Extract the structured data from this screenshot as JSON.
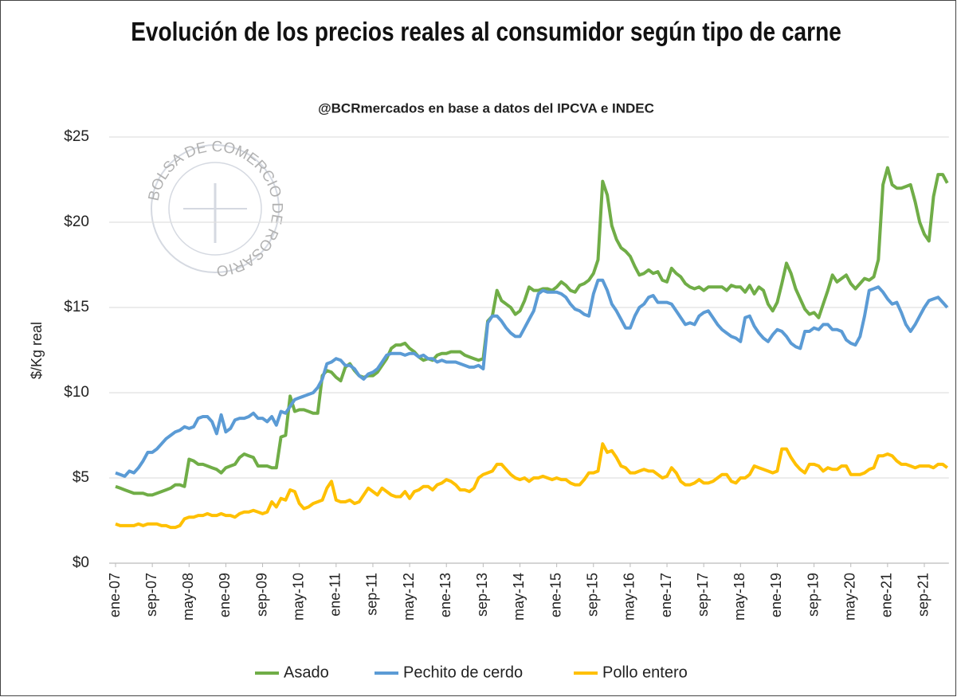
{
  "chart_data": {
    "type": "line",
    "title": "Evolución de los precios reales al consumidor según tipo de carne",
    "subtitle": "@BCRmercados en base a datos del IPCVA e INDEC",
    "watermark": "BOLSA DE COMERCIO DE ROSARIO",
    "y_label": "$/Kg real",
    "ylim": [
      0,
      25
    ],
    "yticks": [
      {
        "value": 0,
        "label": "$0"
      },
      {
        "value": 5,
        "label": "$5"
      },
      {
        "value": 10,
        "label": "$10"
      },
      {
        "value": 15,
        "label": "$15"
      },
      {
        "value": 20,
        "label": "$20"
      },
      {
        "value": 25,
        "label": "$25"
      }
    ],
    "grid": true,
    "legend": "bottom",
    "categories": [
      "ene-07",
      null,
      null,
      null,
      null,
      null,
      null,
      null,
      "sep-07",
      null,
      null,
      null,
      null,
      null,
      null,
      null,
      "may-08",
      null,
      null,
      null,
      null,
      null,
      null,
      null,
      "ene-09",
      null,
      null,
      null,
      null,
      null,
      null,
      null,
      "sep-09",
      null,
      null,
      null,
      null,
      null,
      null,
      null,
      "may-10",
      null,
      null,
      null,
      null,
      null,
      null,
      null,
      "ene-11",
      null,
      null,
      null,
      null,
      null,
      null,
      null,
      "sep-11",
      null,
      null,
      null,
      null,
      null,
      null,
      null,
      "may-12",
      null,
      null,
      null,
      null,
      null,
      null,
      null,
      "ene-13",
      null,
      null,
      null,
      null,
      null,
      null,
      null,
      "sep-13",
      null,
      null,
      null,
      null,
      null,
      null,
      null,
      "may-14",
      null,
      null,
      null,
      null,
      null,
      null,
      null,
      "ene-15",
      null,
      null,
      null,
      null,
      null,
      null,
      null,
      "sep-15",
      null,
      null,
      null,
      null,
      null,
      null,
      null,
      "may-16",
      null,
      null,
      null,
      null,
      null,
      null,
      null,
      "ene-17",
      null,
      null,
      null,
      null,
      null,
      null,
      null,
      "sep-17",
      null,
      null,
      null,
      null,
      null,
      null,
      null,
      "may-18",
      null,
      null,
      null,
      null,
      null,
      null,
      null,
      "ene-19",
      null,
      null,
      null,
      null,
      null,
      null,
      null,
      "sep-19",
      null,
      null,
      null,
      null,
      null,
      null,
      null,
      "may-20",
      null,
      null,
      null,
      null,
      null,
      null,
      null,
      "ene-21",
      null,
      null,
      null,
      null,
      null,
      null,
      null,
      "sep-21",
      null,
      null,
      null,
      null,
      null
    ],
    "series": [
      {
        "name": "Asado",
        "color": "#70ad47",
        "values": [
          4.5,
          4.4,
          4.3,
          4.2,
          4.1,
          4.1,
          4.1,
          4.0,
          4.0,
          4.1,
          4.2,
          4.3,
          4.4,
          4.6,
          4.6,
          4.5,
          6.1,
          6.0,
          5.8,
          5.8,
          5.7,
          5.6,
          5.5,
          5.3,
          5.6,
          5.7,
          5.8,
          6.2,
          6.4,
          6.3,
          6.2,
          5.7,
          5.7,
          5.7,
          5.6,
          5.6,
          7.4,
          7.5,
          9.8,
          8.9,
          9.0,
          9.0,
          8.9,
          8.8,
          8.8,
          11.0,
          11.3,
          11.2,
          10.9,
          10.7,
          11.5,
          11.7,
          11.3,
          11.0,
          10.9,
          11.0,
          11.0,
          11.2,
          11.6,
          12.0,
          12.6,
          12.8,
          12.8,
          12.9,
          12.6,
          12.4,
          12.1,
          11.9,
          12.0,
          11.9,
          12.2,
          12.3,
          12.3,
          12.4,
          12.4,
          12.4,
          12.2,
          12.1,
          12.0,
          11.9,
          12.0,
          14.2,
          14.5,
          16.0,
          15.4,
          15.2,
          15.0,
          14.6,
          14.8,
          15.4,
          16.2,
          16.0,
          16.0,
          16.1,
          16.1,
          16.0,
          16.2,
          16.5,
          16.3,
          16.0,
          15.9,
          16.3,
          16.4,
          16.6,
          17.0,
          17.8,
          22.4,
          21.6,
          19.8,
          19.0,
          18.5,
          18.3,
          18.0,
          17.4,
          16.9,
          17.0,
          17.2,
          17.0,
          17.1,
          16.6,
          16.5,
          17.3,
          17.0,
          16.8,
          16.4,
          16.2,
          16.1,
          16.2,
          16.0,
          16.2,
          16.2,
          16.2,
          16.2,
          16.0,
          16.3,
          16.2,
          16.2,
          15.9,
          16.3,
          15.8,
          16.2,
          16.0,
          15.2,
          14.8,
          15.3,
          16.4,
          17.6,
          17.0,
          16.1,
          15.5,
          14.9,
          14.6,
          14.7,
          14.4,
          15.2,
          16.0,
          16.9,
          16.5,
          16.7,
          16.9,
          16.4,
          16.1,
          16.4,
          16.7,
          16.6,
          16.8,
          17.8,
          22.2,
          23.2,
          22.2,
          22.0,
          22.0,
          22.1,
          22.2,
          21.2,
          20.0,
          19.3,
          18.9,
          21.5,
          22.8,
          22.8,
          22.3
        ]
      },
      {
        "name": "Pechito de cerdo",
        "color": "#5b9bd5",
        "values": [
          5.3,
          5.2,
          5.1,
          5.4,
          5.3,
          5.6,
          6.0,
          6.5,
          6.5,
          6.7,
          7.0,
          7.3,
          7.5,
          7.7,
          7.8,
          8.0,
          7.9,
          8.0,
          8.5,
          8.6,
          8.6,
          8.3,
          7.6,
          8.7,
          7.7,
          7.9,
          8.4,
          8.5,
          8.5,
          8.6,
          8.8,
          8.5,
          8.5,
          8.3,
          8.6,
          8.1,
          8.9,
          8.8,
          9.2,
          9.6,
          9.7,
          9.8,
          9.9,
          10.0,
          10.3,
          10.8,
          11.7,
          11.8,
          12.0,
          11.9,
          11.6,
          11.6,
          11.4,
          11.0,
          10.8,
          11.1,
          11.2,
          11.4,
          11.8,
          12.2,
          12.3,
          12.3,
          12.3,
          12.2,
          12.3,
          12.3,
          12.1,
          12.2,
          12.0,
          12.0,
          11.8,
          11.9,
          11.8,
          11.8,
          11.8,
          11.7,
          11.6,
          11.5,
          11.5,
          11.6,
          11.4,
          14.1,
          14.5,
          14.5,
          14.2,
          13.8,
          13.5,
          13.3,
          13.3,
          13.8,
          14.3,
          14.8,
          15.8,
          16.0,
          15.9,
          15.9,
          15.9,
          15.8,
          15.6,
          15.2,
          14.9,
          14.8,
          14.6,
          14.5,
          15.8,
          16.6,
          16.6,
          16.0,
          15.2,
          14.8,
          14.3,
          13.8,
          13.8,
          14.5,
          15.0,
          15.2,
          15.6,
          15.7,
          15.3,
          15.3,
          15.3,
          15.2,
          14.8,
          14.4,
          14.0,
          14.1,
          14.0,
          14.5,
          14.7,
          14.8,
          14.4,
          14.0,
          13.7,
          13.5,
          13.3,
          13.2,
          13.0,
          14.4,
          14.5,
          13.9,
          13.5,
          13.2,
          13.0,
          13.4,
          13.7,
          13.6,
          13.3,
          12.9,
          12.7,
          12.6,
          13.6,
          13.6,
          13.8,
          13.7,
          14.0,
          14.0,
          13.7,
          13.7,
          13.6,
          13.1,
          12.9,
          12.8,
          13.3,
          14.5,
          16.0,
          16.1,
          16.2,
          15.9,
          15.5,
          15.2,
          15.3,
          14.7,
          14.0,
          13.6,
          14.0,
          14.5,
          15.0,
          15.4,
          15.5,
          15.6,
          15.3,
          15.0
        ]
      },
      {
        "name": "Pollo entero",
        "color": "#ffc000",
        "values": [
          2.3,
          2.2,
          2.2,
          2.2,
          2.2,
          2.3,
          2.2,
          2.3,
          2.3,
          2.3,
          2.2,
          2.2,
          2.1,
          2.1,
          2.2,
          2.6,
          2.7,
          2.7,
          2.8,
          2.8,
          2.9,
          2.8,
          2.8,
          2.9,
          2.8,
          2.8,
          2.7,
          2.9,
          3.0,
          3.0,
          3.1,
          3.0,
          2.9,
          3.0,
          3.6,
          3.3,
          3.8,
          3.7,
          4.3,
          4.2,
          3.5,
          3.2,
          3.3,
          3.5,
          3.6,
          3.7,
          4.4,
          4.8,
          3.7,
          3.6,
          3.6,
          3.7,
          3.5,
          3.6,
          4.0,
          4.4,
          4.2,
          4.0,
          4.4,
          4.2,
          4.0,
          3.9,
          3.9,
          4.2,
          3.8,
          4.2,
          4.3,
          4.5,
          4.5,
          4.3,
          4.6,
          4.7,
          4.9,
          4.8,
          4.6,
          4.3,
          4.3,
          4.2,
          4.4,
          5.0,
          5.2,
          5.3,
          5.4,
          5.8,
          5.8,
          5.5,
          5.2,
          5.0,
          4.9,
          5.0,
          4.8,
          5.0,
          5.0,
          5.1,
          5.0,
          4.9,
          5.0,
          4.9,
          4.9,
          4.7,
          4.6,
          4.6,
          4.9,
          5.3,
          5.3,
          5.4,
          7.0,
          6.5,
          6.6,
          6.2,
          5.7,
          5.6,
          5.3,
          5.3,
          5.4,
          5.5,
          5.4,
          5.4,
          5.2,
          5.0,
          5.1,
          5.6,
          5.3,
          4.8,
          4.6,
          4.6,
          4.7,
          4.9,
          4.7,
          4.7,
          4.8,
          5.0,
          5.2,
          5.2,
          4.8,
          4.7,
          5.0,
          5.0,
          5.2,
          5.7,
          5.6,
          5.5,
          5.4,
          5.3,
          5.4,
          6.7,
          6.7,
          6.2,
          5.8,
          5.5,
          5.3,
          5.8,
          5.8,
          5.7,
          5.4,
          5.6,
          5.5,
          5.5,
          5.7,
          5.7,
          5.2,
          5.2,
          5.2,
          5.3,
          5.5,
          5.6,
          6.3,
          6.3,
          6.4,
          6.3,
          6.0,
          5.8,
          5.8,
          5.7,
          5.6,
          5.7,
          5.7,
          5.7,
          5.6,
          5.8,
          5.8,
          5.6
        ]
      }
    ]
  }
}
